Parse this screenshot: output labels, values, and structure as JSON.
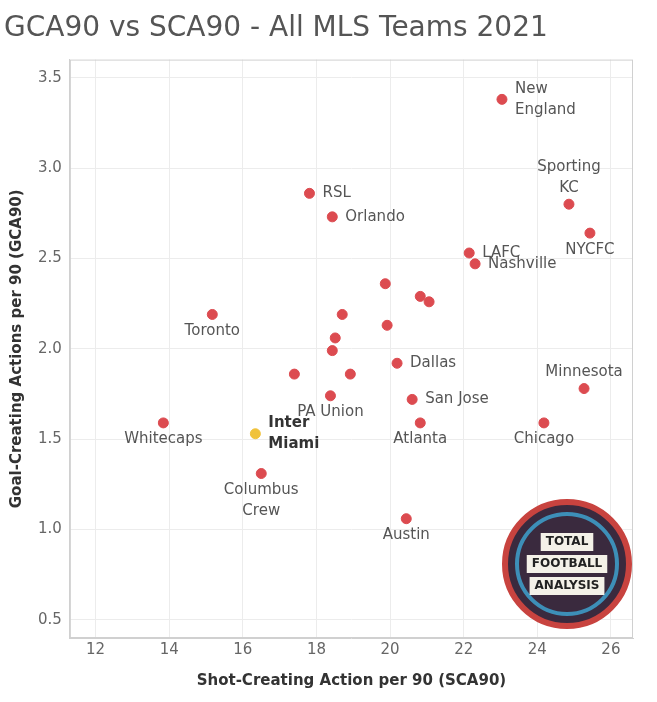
{
  "chart_data": {
    "type": "scatter",
    "title": "GCA90 vs SCA90 - All MLS Teams 2021",
    "x_label": "Shot-Creating Action per 90 (SCA90)",
    "y_label": "Goal-Creating Actions per 90 (GCA90)",
    "labels": [
      "New England",
      "Sporting KC",
      "NYCFC",
      "RSL",
      "Orlando",
      "LAFC",
      "Nashville",
      "Toronto",
      null,
      null,
      null,
      null,
      null,
      null,
      null,
      null,
      null,
      "Dallas",
      "PA Union",
      "San Jose",
      "Minnesota",
      "Whitecaps",
      "Atlanta",
      "Chicago",
      "Inter Miami",
      "Columbus Crew",
      "Austin"
    ],
    "x": [
      23.04,
      24.86,
      25.43,
      17.81,
      18.43,
      22.15,
      22.31,
      15.17,
      19.87,
      20.82,
      21.06,
      18.7,
      19.92,
      18.51,
      18.43,
      17.4,
      18.92,
      20.19,
      18.38,
      20.6,
      25.27,
      13.84,
      20.82,
      24.18,
      16.34,
      16.5,
      20.44
    ],
    "values": [
      3.38,
      2.8,
      2.64,
      2.86,
      2.73,
      2.53,
      2.47,
      2.19,
      2.36,
      2.29,
      2.26,
      2.19,
      2.13,
      2.06,
      1.99,
      1.86,
      1.86,
      1.92,
      1.74,
      1.72,
      1.78,
      1.59,
      1.59,
      1.59,
      1.53,
      1.31,
      1.06
    ],
    "colors": [
      "#dc4b50",
      "#dc4b50",
      "#dc4b50",
      "#dc4b50",
      "#dc4b50",
      "#dc4b50",
      "#dc4b50",
      "#dc4b50",
      "#dc4b50",
      "#dc4b50",
      "#dc4b50",
      "#dc4b50",
      "#dc4b50",
      "#dc4b50",
      "#dc4b50",
      "#dc4b50",
      "#dc4b50",
      "#dc4b50",
      "#dc4b50",
      "#dc4b50",
      "#dc4b50",
      "#dc4b50",
      "#dc4b50",
      "#dc4b50",
      "#f0c23c",
      "#dc4b50",
      "#dc4b50"
    ],
    "xlim": [
      11.3,
      26.6
    ],
    "xticks": [
      12,
      14,
      16,
      18,
      20,
      22,
      24,
      26
    ],
    "ylim": [
      0.4,
      3.6
    ],
    "yticks": [
      0.5,
      {
        "value": 1,
        "label": "1.0"
      },
      1.5,
      {
        "value": 2,
        "label": "2.0"
      },
      2.5,
      {
        "value": 3,
        "label": "3.0"
      },
      3.5
    ],
    "grid": true,
    "marker": "circle",
    "annotations": [
      "TOTAL FOOTBALL ANALYSIS"
    ]
  }
}
